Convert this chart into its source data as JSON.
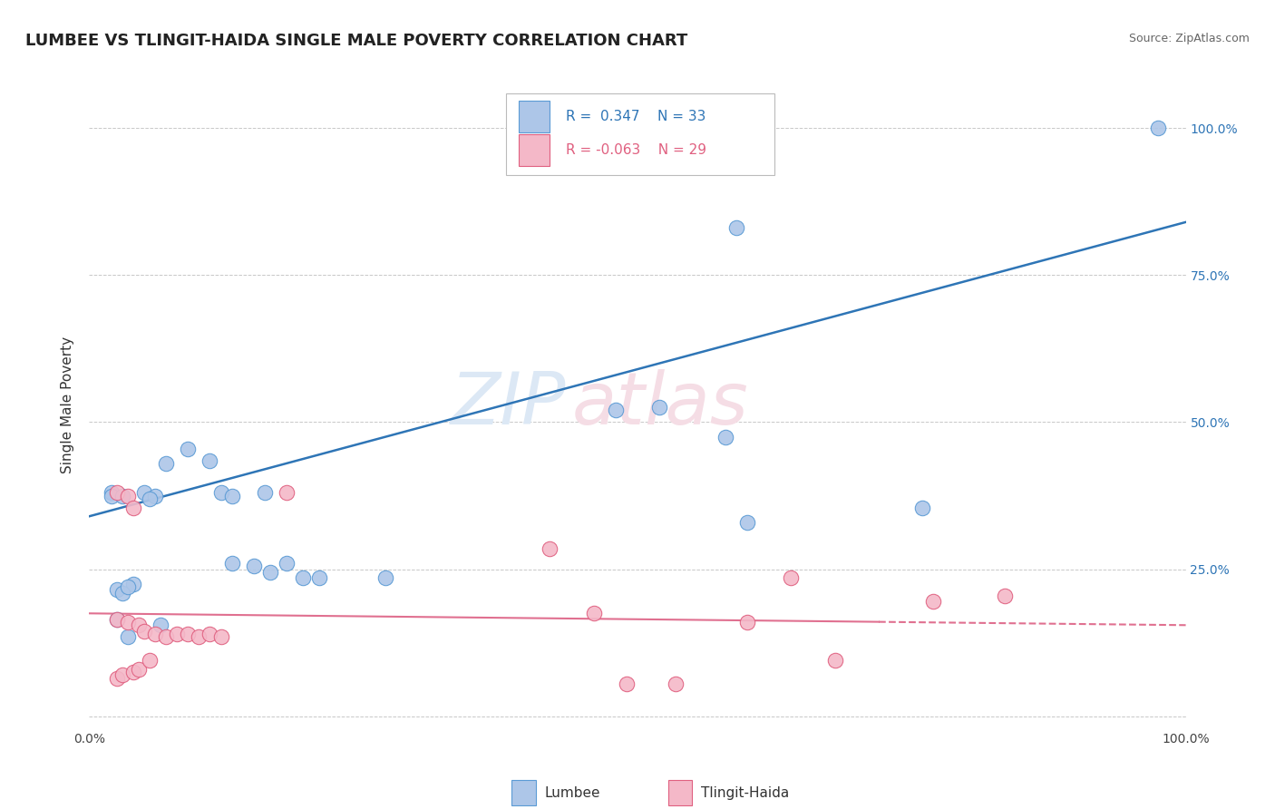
{
  "title": "LUMBEE VS TLINGIT-HAIDA SINGLE MALE POVERTY CORRELATION CHART",
  "source": "Source: ZipAtlas.com",
  "ylabel": "Single Male Poverty",
  "xlim": [
    0.0,
    1.0
  ],
  "ylim": [
    -0.02,
    1.08
  ],
  "ytick_positions": [
    0.0,
    0.25,
    0.5,
    0.75,
    1.0
  ],
  "ytick_labels_right": [
    "",
    "25.0%",
    "50.0%",
    "75.0%",
    "100.0%"
  ],
  "xtick_positions": [
    0.0,
    1.0
  ],
  "xtick_labels": [
    "0.0%",
    "100.0%"
  ],
  "lumbee_color": "#adc6e8",
  "lumbee_edge": "#5b9bd5",
  "tlingit_color": "#f4b8c8",
  "tlingit_edge": "#e06080",
  "line1_color": "#2e75b6",
  "line2_color": "#e07090",
  "line1_slope": 0.5,
  "line1_intercept": 0.34,
  "line2_slope": -0.02,
  "line2_intercept": 0.175,
  "watermark_color": "#dce8f5",
  "watermark_color2": "#f5dde5",
  "legend_r1": "R =  0.347",
  "legend_n1": "N = 33",
  "legend_r2": "R = -0.063",
  "legend_n2": "N = 29",
  "lumbee_points": [
    [
      0.02,
      0.38
    ],
    [
      0.05,
      0.38
    ],
    [
      0.12,
      0.38
    ],
    [
      0.16,
      0.38
    ],
    [
      0.02,
      0.375
    ],
    [
      0.06,
      0.375
    ],
    [
      0.07,
      0.43
    ],
    [
      0.09,
      0.455
    ],
    [
      0.11,
      0.435
    ],
    [
      0.13,
      0.375
    ],
    [
      0.04,
      0.225
    ],
    [
      0.13,
      0.26
    ],
    [
      0.15,
      0.255
    ],
    [
      0.165,
      0.245
    ],
    [
      0.18,
      0.26
    ],
    [
      0.195,
      0.235
    ],
    [
      0.21,
      0.235
    ],
    [
      0.27,
      0.235
    ],
    [
      0.025,
      0.215
    ],
    [
      0.03,
      0.21
    ],
    [
      0.48,
      0.52
    ],
    [
      0.52,
      0.525
    ],
    [
      0.58,
      0.475
    ],
    [
      0.6,
      0.33
    ],
    [
      0.76,
      0.355
    ],
    [
      0.975,
      1.0
    ],
    [
      0.025,
      0.165
    ],
    [
      0.035,
      0.135
    ],
    [
      0.065,
      0.155
    ],
    [
      0.59,
      0.83
    ],
    [
      0.03,
      0.375
    ],
    [
      0.055,
      0.37
    ],
    [
      0.035,
      0.22
    ]
  ],
  "tlingit_points": [
    [
      0.025,
      0.38
    ],
    [
      0.035,
      0.375
    ],
    [
      0.04,
      0.355
    ],
    [
      0.025,
      0.165
    ],
    [
      0.035,
      0.16
    ],
    [
      0.045,
      0.155
    ],
    [
      0.05,
      0.145
    ],
    [
      0.06,
      0.14
    ],
    [
      0.07,
      0.135
    ],
    [
      0.08,
      0.14
    ],
    [
      0.09,
      0.14
    ],
    [
      0.1,
      0.135
    ],
    [
      0.11,
      0.14
    ],
    [
      0.12,
      0.135
    ],
    [
      0.18,
      0.38
    ],
    [
      0.42,
      0.285
    ],
    [
      0.46,
      0.175
    ],
    [
      0.49,
      0.055
    ],
    [
      0.535,
      0.055
    ],
    [
      0.6,
      0.16
    ],
    [
      0.64,
      0.235
    ],
    [
      0.68,
      0.095
    ],
    [
      0.77,
      0.195
    ],
    [
      0.835,
      0.205
    ],
    [
      0.025,
      0.065
    ],
    [
      0.03,
      0.07
    ],
    [
      0.04,
      0.075
    ],
    [
      0.045,
      0.08
    ],
    [
      0.055,
      0.095
    ]
  ]
}
